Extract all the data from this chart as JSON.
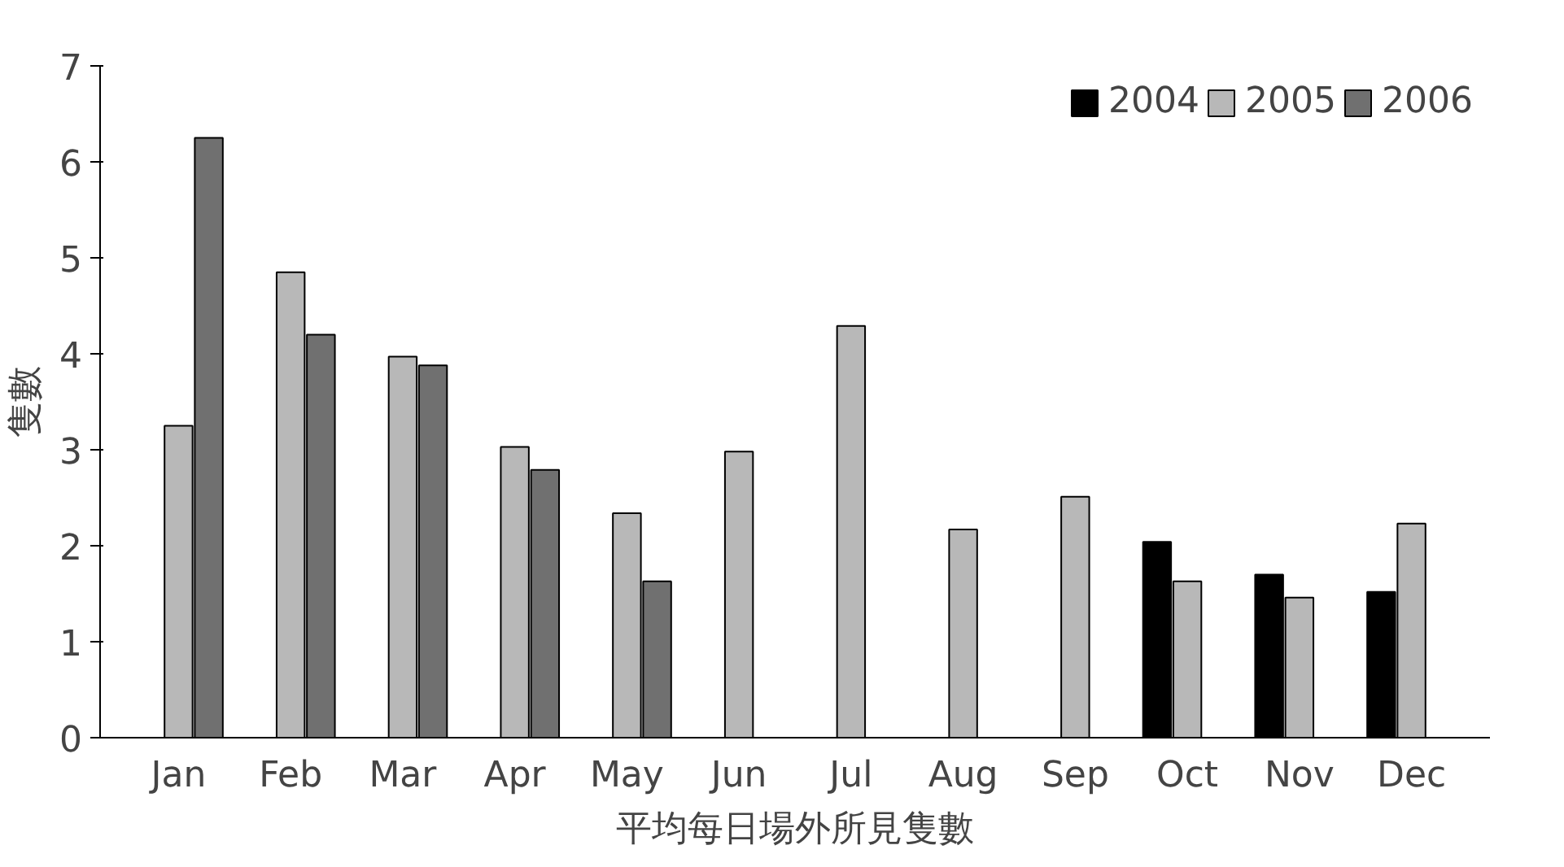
{
  "chart_data": {
    "type": "bar",
    "xlabel": "平均每日場外所見隻數",
    "ylabel": "隻數",
    "categories": [
      "Jan",
      "Feb",
      "Mar",
      "Apr",
      "May",
      "Jun",
      "Jul",
      "Aug",
      "Sep",
      "Oct",
      "Nov",
      "Dec"
    ],
    "series": [
      {
        "name": "2004",
        "color": "#000000",
        "values": [
          null,
          null,
          null,
          null,
          null,
          null,
          null,
          null,
          null,
          2.04,
          1.7,
          1.52
        ]
      },
      {
        "name": "2005",
        "color": "#b8b8b8",
        "values": [
          3.25,
          4.85,
          3.97,
          3.03,
          2.34,
          2.98,
          4.29,
          2.17,
          2.51,
          1.63,
          1.46,
          2.23
        ]
      },
      {
        "name": "2006",
        "color": "#707070",
        "values": [
          6.25,
          4.2,
          3.88,
          2.79,
          1.63,
          null,
          null,
          null,
          null,
          null,
          null,
          null
        ]
      }
    ],
    "ylim": [
      0,
      7
    ],
    "yticks": [
      0,
      1,
      2,
      3,
      4,
      5,
      6,
      7
    ],
    "grid": false,
    "legend": "top right"
  }
}
